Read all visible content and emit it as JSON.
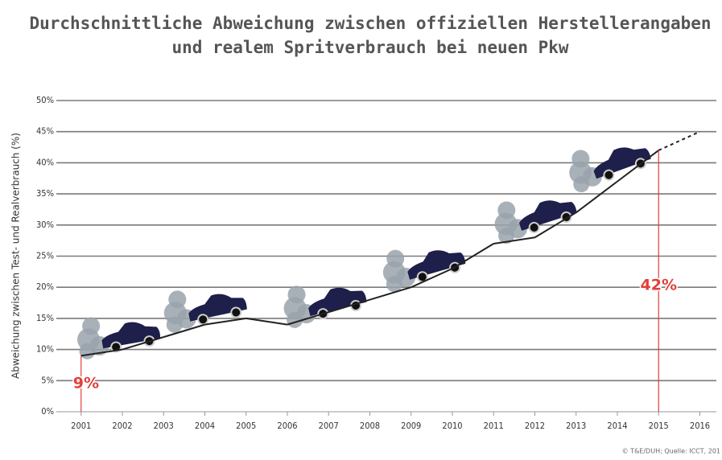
{
  "chart_data": {
    "type": "line",
    "title": "Durchschnittliche Abweichung zwischen offiziellen Herstellerangaben",
    "subtitle": "und realem Spritverbrauch bei neuen Pkw",
    "y_label": "Abweichung zwischen Test- und Realverbrauch (%)",
    "source": "© T&E/DUH; Quelle: ICCT, 201",
    "x": [
      2001,
      2002,
      2003,
      2004,
      2005,
      2006,
      2007,
      2008,
      2009,
      2010,
      2011,
      2012,
      2013,
      2014,
      2015,
      2016
    ],
    "values": [
      9,
      10,
      12,
      14,
      15,
      14,
      16,
      18,
      20,
      23,
      27,
      28,
      32,
      37,
      42,
      45
    ],
    "value_labels": [
      "9%",
      null,
      null,
      null,
      null,
      null,
      null,
      null,
      null,
      null,
      null,
      null,
      null,
      null,
      "42%",
      null
    ],
    "dashed_from": 2015,
    "color": "#222222",
    "label_color": "#e0403a",
    "xlim": [
      2000.4,
      2016.4
    ],
    "ylim": [
      0,
      50
    ],
    "yticks": [
      {
        "value": 0,
        "label": "0%"
      },
      {
        "value": 5,
        "label": "5%"
      },
      {
        "value": 10,
        "label": "10%"
      },
      {
        "value": 15,
        "label": "15%"
      },
      {
        "value": 20,
        "label": "20%"
      },
      {
        "value": 25,
        "label": "25%"
      },
      {
        "value": 30,
        "label": "30%"
      },
      {
        "value": 35,
        "label": "35%"
      },
      {
        "value": 40,
        "label": "40%"
      },
      {
        "value": 45,
        "label": "45%"
      },
      {
        "value": 50,
        "label": "50%"
      }
    ],
    "grid": true
  }
}
